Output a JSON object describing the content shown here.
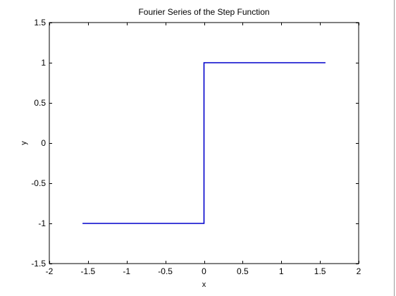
{
  "chart_data": {
    "type": "line",
    "title": "Fourier Series of the Step Function",
    "xlabel": "x",
    "ylabel": "y",
    "xlim": [
      -2,
      2
    ],
    "ylim": [
      -1.5,
      1.5
    ],
    "xticks": [
      "-2",
      "-1.5",
      "-1",
      "-0.5",
      "0",
      "0.5",
      "1",
      "1.5",
      "2"
    ],
    "yticks": [
      "-1.5",
      "-1",
      "-0.5",
      "0",
      "0.5",
      "1",
      "1.5"
    ],
    "grid": false,
    "legend": "none",
    "series": [
      {
        "color": "#0000cc",
        "x": [
          -1.5708,
          0,
          0,
          1.5708
        ],
        "y": [
          -1,
          -1,
          1,
          1
        ]
      }
    ]
  }
}
